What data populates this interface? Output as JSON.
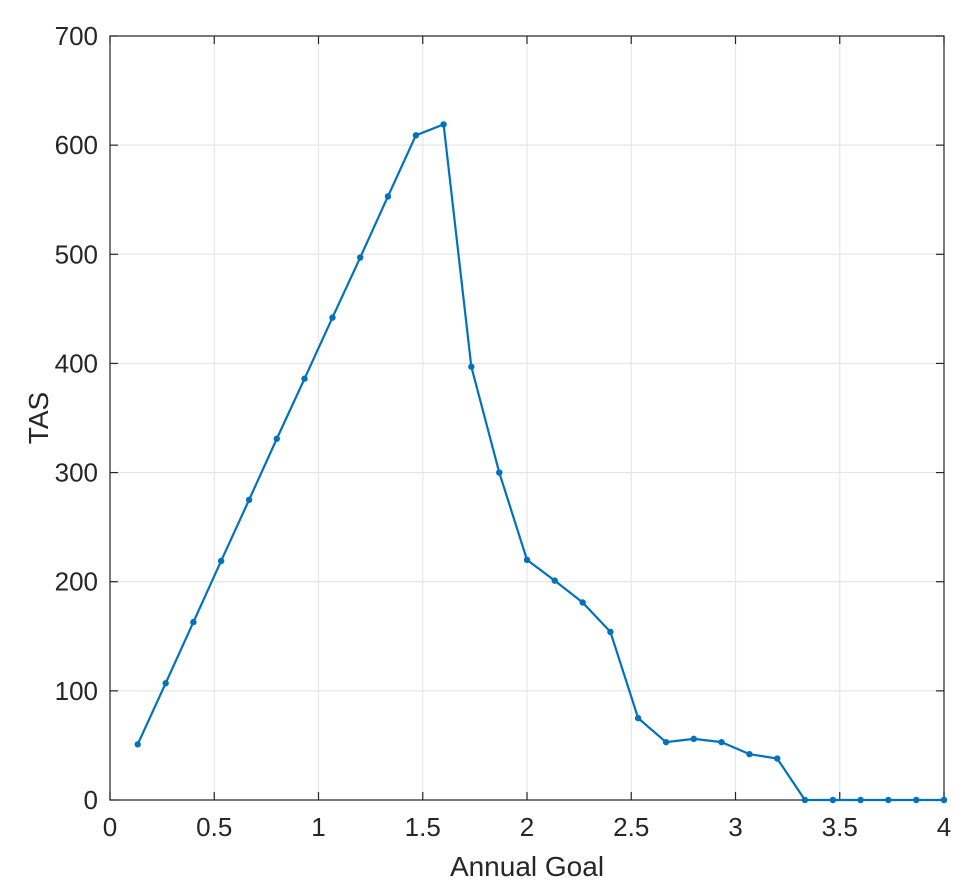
{
  "chart_data": {
    "type": "line",
    "title": "",
    "xlabel": "Annual Goal",
    "ylabel": "TAS",
    "xlim": [
      0,
      4
    ],
    "ylim": [
      0,
      700
    ],
    "grid": true,
    "x_ticks": [
      0,
      0.5,
      1,
      1.5,
      2,
      2.5,
      3,
      3.5,
      4
    ],
    "x_tick_labels": [
      "0",
      "0.5",
      "1",
      "1.5",
      "2",
      "2.5",
      "3",
      "3.5",
      "4"
    ],
    "y_ticks": [
      0,
      100,
      200,
      300,
      400,
      500,
      600,
      700
    ],
    "y_tick_labels": [
      "0",
      "100",
      "200",
      "300",
      "400",
      "500",
      "600",
      "700"
    ],
    "series": [
      {
        "color": "#0072bd",
        "marker": "dot",
        "x": [
          0.133,
          0.267,
          0.4,
          0.533,
          0.667,
          0.8,
          0.933,
          1.067,
          1.2,
          1.333,
          1.467,
          1.6,
          1.733,
          1.867,
          2.0,
          2.133,
          2.267,
          2.4,
          2.533,
          2.667,
          2.8,
          2.933,
          3.067,
          3.2,
          3.333,
          3.467,
          3.6,
          3.733,
          3.867,
          4.0
        ],
        "y": [
          51,
          107,
          163,
          219,
          275,
          331,
          386,
          442,
          497,
          553,
          609,
          619,
          397,
          300,
          220,
          201,
          181,
          154,
          75,
          53,
          56,
          53,
          42,
          38,
          0,
          0,
          0,
          0,
          0,
          0
        ]
      }
    ]
  }
}
